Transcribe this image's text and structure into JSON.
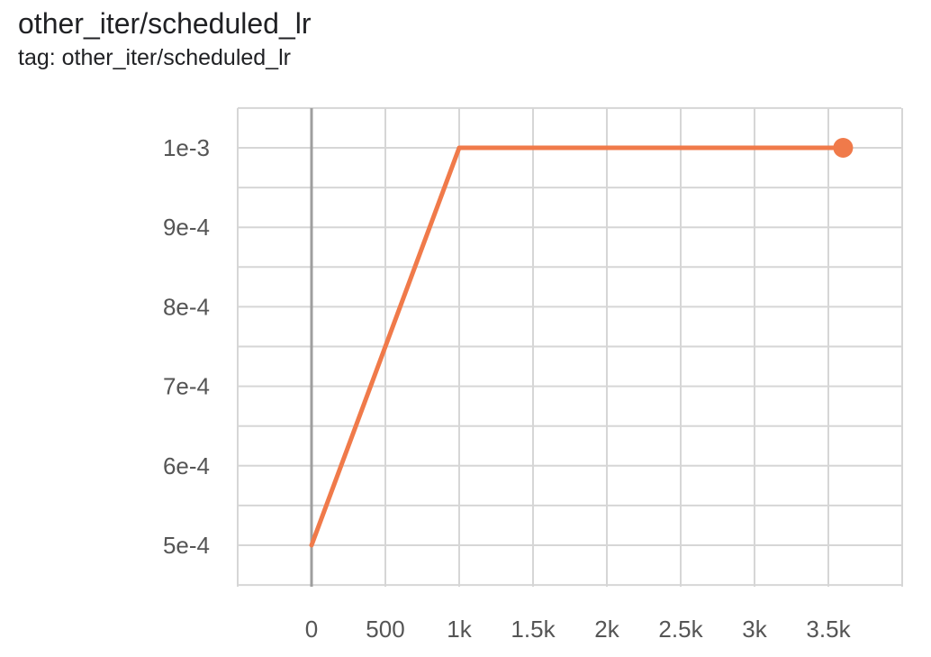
{
  "card": {
    "title": "other_iter/scheduled_lr",
    "tag": "tag: other_iter/scheduled_lr"
  },
  "chart_data": {
    "type": "line",
    "title": "other_iter/scheduled_lr",
    "xlabel": "",
    "ylabel": "",
    "x_ticks": [
      0,
      500,
      1000,
      1500,
      2000,
      2500,
      3000,
      3500
    ],
    "x_tick_labels": [
      "0",
      "500",
      "1k",
      "1.5k",
      "2k",
      "2.5k",
      "3k",
      "3.5k"
    ],
    "y_ticks": [
      0.0005,
      0.0006,
      0.0007,
      0.0008,
      0.0009,
      0.001
    ],
    "y_tick_labels": [
      "5e-4",
      "6e-4",
      "7e-4",
      "8e-4",
      "9e-4",
      "1e-3"
    ],
    "xlim": [
      -250,
      2000000
    ],
    "ylim": [
      0.00045,
      0.00105
    ],
    "grid": true,
    "series": [
      {
        "color": "#f07a4a",
        "x": [
          0,
          1000,
          3600
        ],
        "y": [
          0.0005,
          0.001,
          0.001
        ]
      }
    ]
  }
}
